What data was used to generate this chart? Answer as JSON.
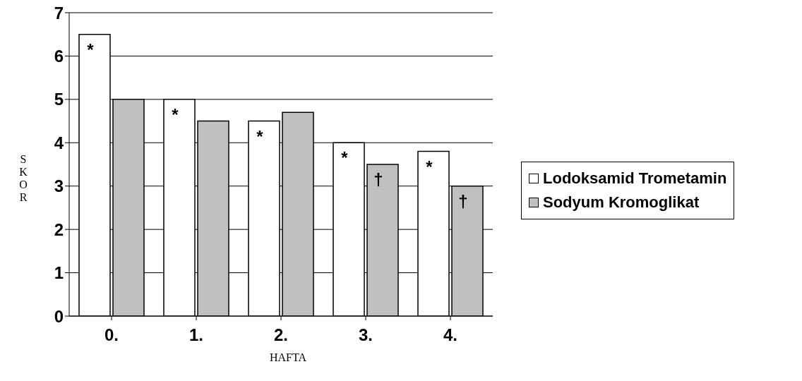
{
  "chart_data": {
    "type": "bar",
    "xlabel": "HAFTA",
    "ylabel": "SKOR",
    "categories": [
      "0.",
      "1.",
      "2.",
      "3.",
      "4."
    ],
    "series": [
      {
        "name": "Lodoksamid Trometamin",
        "color": "#ffffff",
        "values": [
          6.5,
          5.0,
          4.5,
          4.0,
          3.8
        ]
      },
      {
        "name": "Sodyum Kromoglikat",
        "color": "#c0c0c0",
        "values": [
          5.0,
          4.5,
          4.7,
          3.5,
          3.0
        ]
      }
    ],
    "ylim": [
      0,
      7
    ],
    "yticks": [
      0,
      1,
      2,
      3,
      4,
      5,
      6,
      7
    ],
    "grid": "y",
    "legend": "right",
    "annotations": [
      {
        "text": "*",
        "x": "0.",
        "y": 6.5
      },
      {
        "text": "*",
        "x": "1.",
        "y": 5.0
      },
      {
        "text": "*",
        "x": "2.",
        "y": 4.5
      },
      {
        "text": "*",
        "x": "3.",
        "y": 4.0
      },
      {
        "text": "*",
        "x": "4.",
        "y": 3.8
      },
      {
        "text": "†",
        "x": "3.",
        "y": 3.5
      },
      {
        "text": "†",
        "x": "4.",
        "y": 3.0
      }
    ]
  }
}
